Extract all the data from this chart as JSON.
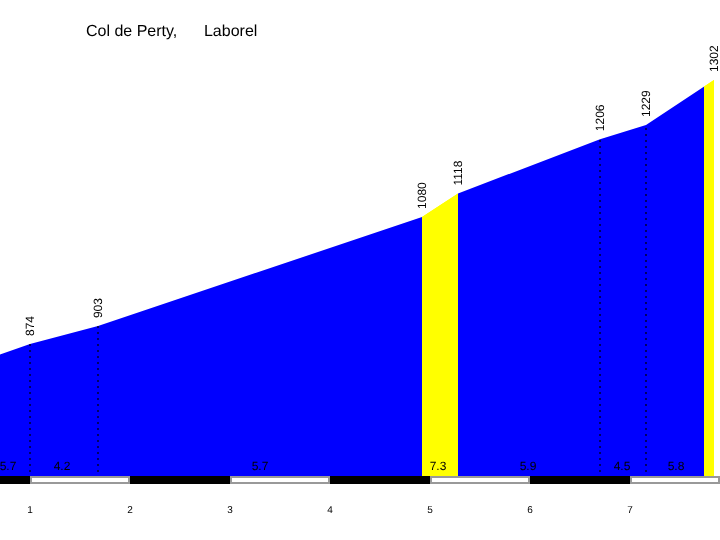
{
  "chart_data": {
    "type": "area",
    "title": "Col de Perty,      Laborel",
    "x": [
      0.7,
      1.0,
      1.68,
      4.92,
      5.28,
      6.7,
      7.16,
      7.84
    ],
    "series": [
      {
        "color": "#0000ff",
        "values": [
          857,
          874,
          903,
          1080,
          1118,
          1206,
          1229,
          1302
        ],
        "value_labels": [
          null,
          "874",
          "903",
          "1080",
          "1118",
          "1206",
          "1229",
          "1302"
        ]
      }
    ],
    "xlim": [
      0.7,
      7.9
    ],
    "xticks": [
      1,
      2,
      3,
      4,
      5,
      6,
      7
    ],
    "bands": [
      {
        "axis": "x",
        "from": 4.92,
        "to": 5.28,
        "color": "#ffff00"
      },
      {
        "axis": "x",
        "from": 7.74,
        "to": 7.84,
        "color": "#ffff00"
      }
    ],
    "ref_lines": [
      {
        "axis": "x",
        "value": 1.0,
        "label": null,
        "line_style": "dotted"
      },
      {
        "axis": "x",
        "value": 1.68,
        "label": null,
        "line_style": "dotted"
      },
      {
        "axis": "x",
        "value": 6.7,
        "label": null,
        "line_style": "dotted"
      },
      {
        "axis": "x",
        "value": 7.16,
        "label": null,
        "line_style": "dotted"
      }
    ],
    "annotations": [
      {
        "text": "5.7",
        "x": 0.78
      },
      {
        "text": "4.2",
        "x": 1.32
      },
      {
        "text": "5.7",
        "x": 3.3
      },
      {
        "text": "7.3",
        "x": 5.08
      },
      {
        "text": "5.9",
        "x": 5.98
      },
      {
        "text": "4.5",
        "x": 6.92
      },
      {
        "text": "5.8",
        "x": 7.46
      }
    ]
  }
}
